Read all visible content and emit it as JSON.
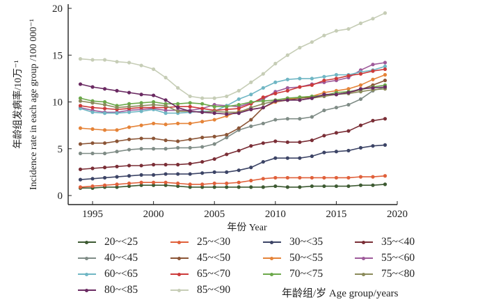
{
  "chart_data": {
    "type": "line",
    "title": "",
    "xlabel": "年份 Year",
    "ylabel_cn": "年龄组发病率/10万⁻¹",
    "ylabel_en": "Incidence rate in each age group /100 000⁻¹",
    "xlim": [
      1993,
      2020
    ],
    "ylim": [
      -0.5,
      20
    ],
    "xticks": [
      1995,
      2000,
      2005,
      2010,
      2015,
      2020
    ],
    "yticks": [
      0,
      5,
      10,
      15,
      20
    ],
    "grid": false,
    "legend_title": "年龄组/岁 Age group/years",
    "legend_position": "bottom",
    "x": [
      1994,
      1995,
      1996,
      1997,
      1998,
      1999,
      2000,
      2001,
      2002,
      2003,
      2004,
      2005,
      2006,
      2007,
      2008,
      2009,
      2010,
      2011,
      2012,
      2013,
      2014,
      2015,
      2016,
      2017,
      2018,
      2019
    ],
    "series": [
      {
        "name": "20~<25",
        "color": "#3d5a32",
        "values": [
          0.8,
          0.8,
          0.9,
          0.9,
          1.0,
          1.1,
          1.1,
          1.1,
          1.0,
          0.9,
          0.9,
          0.9,
          0.9,
          0.9,
          0.9,
          0.9,
          1.0,
          0.9,
          0.9,
          1.0,
          1.0,
          1.0,
          1.0,
          1.1,
          1.1,
          1.2
        ]
      },
      {
        "name": "25~<30",
        "color": "#e0603a",
        "values": [
          0.9,
          1.0,
          1.1,
          1.2,
          1.3,
          1.4,
          1.4,
          1.4,
          1.3,
          1.2,
          1.2,
          1.3,
          1.3,
          1.4,
          1.6,
          1.8,
          1.9,
          1.9,
          1.9,
          1.9,
          1.9,
          1.9,
          1.9,
          2.0,
          2.0,
          2.1
        ]
      },
      {
        "name": "30~<35",
        "color": "#3c4466",
        "values": [
          1.7,
          1.8,
          1.9,
          2.0,
          2.1,
          2.2,
          2.2,
          2.3,
          2.3,
          2.3,
          2.4,
          2.5,
          2.5,
          2.7,
          3.0,
          3.6,
          4.0,
          4.0,
          4.0,
          4.2,
          4.6,
          4.7,
          4.8,
          5.1,
          5.3,
          5.4
        ]
      },
      {
        "name": "35~<40",
        "color": "#7a2e36",
        "values": [
          2.8,
          2.9,
          3.0,
          3.1,
          3.2,
          3.2,
          3.3,
          3.3,
          3.3,
          3.4,
          3.6,
          3.9,
          4.4,
          4.8,
          5.3,
          5.6,
          5.8,
          5.7,
          5.7,
          5.9,
          6.4,
          6.7,
          6.9,
          7.5,
          8.0,
          8.2
        ]
      },
      {
        "name": "40~<45",
        "color": "#7f8c86",
        "values": [
          4.5,
          4.5,
          4.5,
          4.7,
          4.9,
          5.0,
          5.0,
          5.0,
          5.1,
          5.1,
          5.2,
          5.5,
          6.2,
          7.0,
          7.4,
          7.7,
          8.1,
          8.2,
          8.2,
          8.4,
          9.1,
          9.4,
          9.7,
          10.3,
          11.2,
          11.6
        ]
      },
      {
        "name": "45~<50",
        "color": "#8b5536",
        "values": [
          5.5,
          5.6,
          5.6,
          5.8,
          6.0,
          6.1,
          6.1,
          5.9,
          5.8,
          6.0,
          6.2,
          6.3,
          6.5,
          7.2,
          8.1,
          9.4,
          10.0,
          10.2,
          10.4,
          10.5,
          10.7,
          10.8,
          11.0,
          11.3,
          11.8,
          12.3
        ]
      },
      {
        "name": "50~<55",
        "color": "#e58338",
        "values": [
          7.2,
          7.1,
          7.0,
          7.0,
          7.3,
          7.5,
          7.7,
          7.6,
          7.7,
          7.7,
          7.9,
          8.1,
          8.5,
          9.0,
          9.2,
          9.4,
          10.0,
          10.3,
          10.5,
          10.6,
          11.0,
          11.2,
          11.4,
          11.8,
          12.4,
          12.9
        ]
      },
      {
        "name": "55~<60",
        "color": "#9e5a9a",
        "values": [
          9.4,
          9.1,
          8.9,
          8.9,
          9.1,
          9.2,
          9.3,
          9.1,
          9.1,
          9.1,
          9.3,
          9.7,
          9.6,
          9.5,
          9.9,
          10.3,
          11.1,
          11.5,
          11.6,
          11.9,
          12.1,
          12.3,
          12.6,
          13.4,
          14.0,
          14.2
        ]
      },
      {
        "name": "60~<65",
        "color": "#6fb6c4",
        "values": [
          9.3,
          8.9,
          8.8,
          8.8,
          8.9,
          9.0,
          9.2,
          8.8,
          8.8,
          8.9,
          9.0,
          9.0,
          9.6,
          10.3,
          10.8,
          11.5,
          12.1,
          12.4,
          12.5,
          12.5,
          12.7,
          12.9,
          12.9,
          13.2,
          13.4,
          13.8
        ]
      },
      {
        "name": "65~<70",
        "color": "#cc3a3a",
        "values": [
          9.6,
          9.4,
          9.3,
          9.2,
          9.3,
          9.4,
          9.4,
          9.4,
          9.5,
          9.5,
          9.3,
          9.1,
          9.2,
          9.3,
          9.8,
          10.5,
          10.9,
          11.2,
          11.6,
          11.8,
          12.3,
          12.5,
          12.8,
          13.0,
          13.3,
          13.5
        ]
      },
      {
        "name": "70~<75",
        "color": "#6ba84a",
        "values": [
          10.4,
          10.1,
          10.0,
          9.6,
          9.8,
          9.9,
          10.0,
          9.8,
          9.8,
          9.9,
          9.8,
          9.5,
          9.5,
          9.7,
          10.0,
          10.1,
          10.2,
          10.4,
          10.5,
          10.6,
          10.7,
          11.0,
          11.1,
          11.3,
          11.6,
          11.8
        ]
      },
      {
        "name": "75~<80",
        "color": "#8a8a5a",
        "values": [
          10.1,
          9.9,
          9.7,
          9.4,
          9.5,
          9.6,
          9.7,
          9.6,
          9.0,
          9.0,
          8.9,
          9.0,
          8.9,
          8.9,
          9.4,
          9.8,
          10.1,
          10.2,
          10.2,
          10.4,
          10.6,
          10.8,
          10.9,
          11.1,
          11.3,
          11.4
        ]
      },
      {
        "name": "80~<85",
        "color": "#6a2a62",
        "values": [
          11.9,
          11.6,
          11.4,
          11.2,
          11.0,
          10.8,
          10.7,
          10.2,
          9.4,
          9.0,
          8.9,
          8.8,
          8.7,
          8.8,
          9.2,
          9.4,
          10.1,
          10.2,
          10.2,
          10.4,
          10.8,
          10.8,
          11.0,
          11.4,
          11.5,
          11.6
        ]
      },
      {
        "name": "85~<90",
        "color": "#c6cdb6",
        "values": [
          14.6,
          14.5,
          14.5,
          14.3,
          14.2,
          13.9,
          13.5,
          12.6,
          11.5,
          10.6,
          10.4,
          10.4,
          10.6,
          11.2,
          12.1,
          13.0,
          14.1,
          15.0,
          15.8,
          16.4,
          17.1,
          17.6,
          17.8,
          18.4,
          18.9,
          19.5
        ]
      }
    ]
  }
}
